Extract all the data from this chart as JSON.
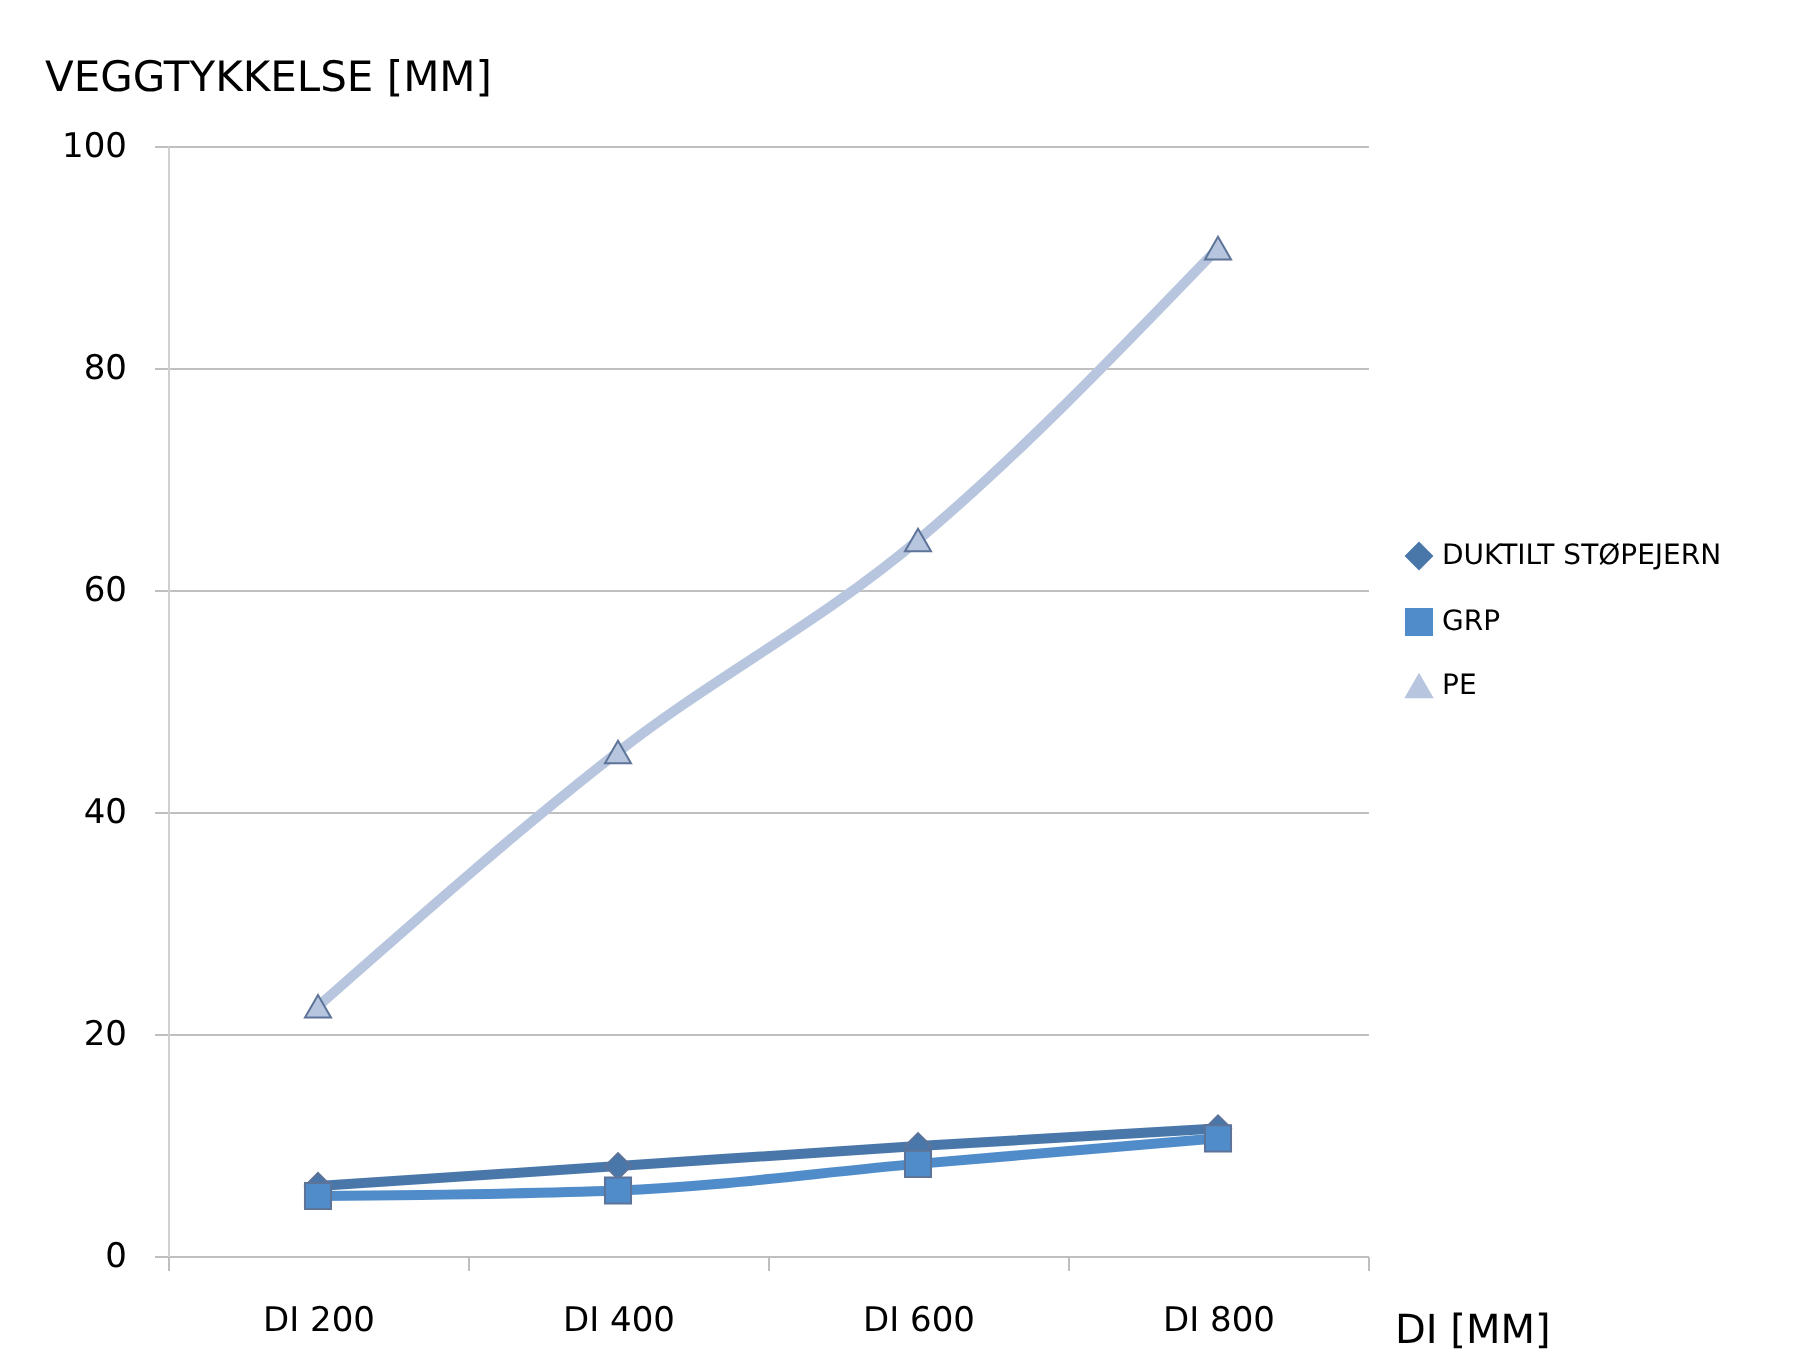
{
  "chart_data": {
    "type": "line",
    "ylabel": "VEGGTYKKELSE [MM]",
    "xlabel": "DI [MM]",
    "categories": [
      "DI 200",
      "DI 400",
      "DI 600",
      "DI 800"
    ],
    "series": [
      {
        "name": "DUKTILT STØPEJERN",
        "color": "#4a77a9",
        "marker": "diamond",
        "values": [
          6.3,
          8.1,
          9.9,
          11.5
        ]
      },
      {
        "name": "GRP",
        "color": "#4f8cc9",
        "marker": "square",
        "values": [
          5.4,
          5.9,
          8.3,
          10.6
        ]
      },
      {
        "name": "PE",
        "color": "#b7c6de",
        "marker": "triangle",
        "values": [
          22.5,
          45.4,
          64.5,
          90.8
        ]
      }
    ],
    "ylim": [
      0,
      100
    ],
    "yticks": [
      0,
      20,
      40,
      60,
      80,
      100
    ],
    "grid": "y",
    "legend": "right",
    "line_style": "solid"
  }
}
